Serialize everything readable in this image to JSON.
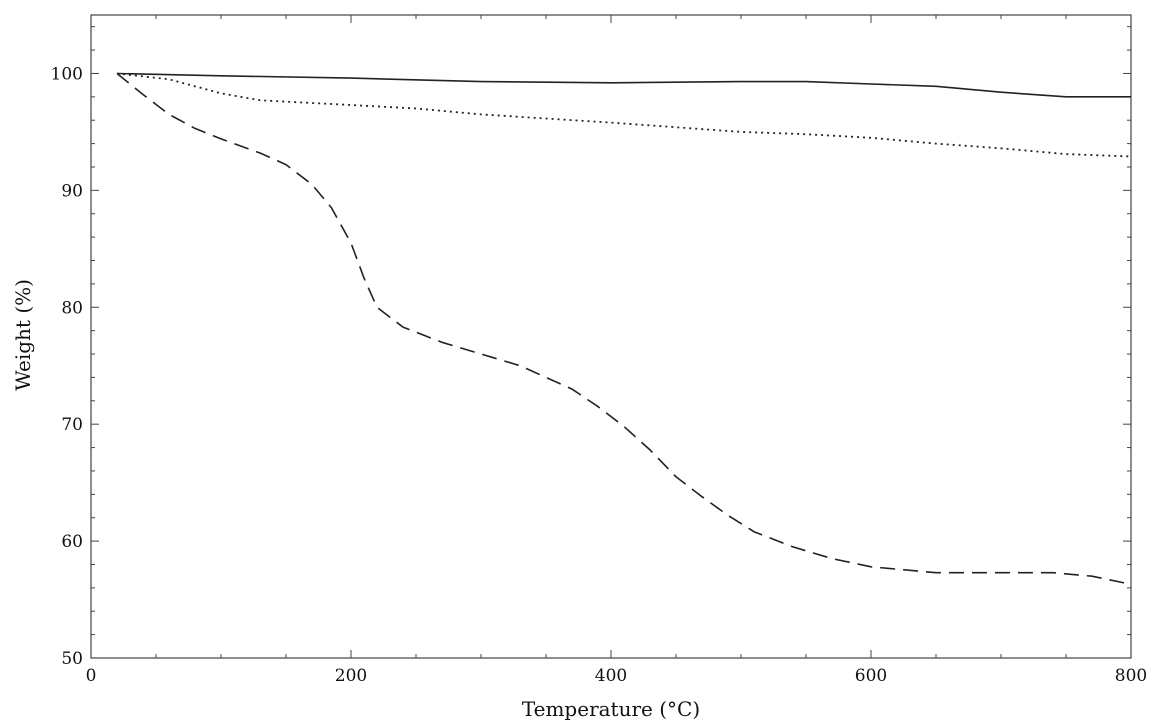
{
  "chart_data": {
    "type": "line",
    "title": "",
    "xlabel": "Temperature (°C)",
    "ylabel": "Weight (%)",
    "xlim": [
      0,
      800
    ],
    "ylim": [
      50,
      105
    ],
    "xticks": [
      0,
      200,
      400,
      600,
      800
    ],
    "yticks": [
      50,
      60,
      70,
      80,
      90,
      100
    ],
    "grid": false,
    "legend": "none",
    "series": [
      {
        "style": "solid",
        "color": "#222222",
        "points": [
          [
            20,
            100
          ],
          [
            100,
            99.8
          ],
          [
            200,
            99.6
          ],
          [
            300,
            99.3
          ],
          [
            400,
            99.2
          ],
          [
            500,
            99.3
          ],
          [
            550,
            99.3
          ],
          [
            600,
            99.1
          ],
          [
            650,
            98.9
          ],
          [
            700,
            98.4
          ],
          [
            750,
            98.0
          ],
          [
            800,
            98.0
          ]
        ]
      },
      {
        "style": "dotted",
        "color": "#222222",
        "points": [
          [
            20,
            100
          ],
          [
            60,
            99.5
          ],
          [
            100,
            98.3
          ],
          [
            130,
            97.7
          ],
          [
            200,
            97.3
          ],
          [
            250,
            97.0
          ],
          [
            300,
            96.5
          ],
          [
            400,
            95.8
          ],
          [
            500,
            95.0
          ],
          [
            550,
            94.8
          ],
          [
            600,
            94.5
          ],
          [
            650,
            94.0
          ],
          [
            700,
            93.6
          ],
          [
            750,
            93.1
          ],
          [
            800,
            92.9
          ]
        ]
      },
      {
        "style": "dashed",
        "color": "#222222",
        "points": [
          [
            20,
            100
          ],
          [
            40,
            98.2
          ],
          [
            60,
            96.5
          ],
          [
            80,
            95.3
          ],
          [
            100,
            94.4
          ],
          [
            130,
            93.2
          ],
          [
            150,
            92.2
          ],
          [
            170,
            90.5
          ],
          [
            185,
            88.5
          ],
          [
            200,
            85.5
          ],
          [
            210,
            82.5
          ],
          [
            220,
            80.0
          ],
          [
            240,
            78.3
          ],
          [
            270,
            77.0
          ],
          [
            300,
            76.0
          ],
          [
            330,
            75.0
          ],
          [
            350,
            74.0
          ],
          [
            370,
            73.0
          ],
          [
            390,
            71.5
          ],
          [
            410,
            69.8
          ],
          [
            430,
            67.8
          ],
          [
            450,
            65.5
          ],
          [
            470,
            63.8
          ],
          [
            490,
            62.2
          ],
          [
            510,
            60.8
          ],
          [
            540,
            59.5
          ],
          [
            570,
            58.5
          ],
          [
            600,
            57.8
          ],
          [
            650,
            57.3
          ],
          [
            700,
            57.3
          ],
          [
            740,
            57.3
          ],
          [
            770,
            57.0
          ],
          [
            800,
            56.3
          ]
        ]
      }
    ]
  }
}
